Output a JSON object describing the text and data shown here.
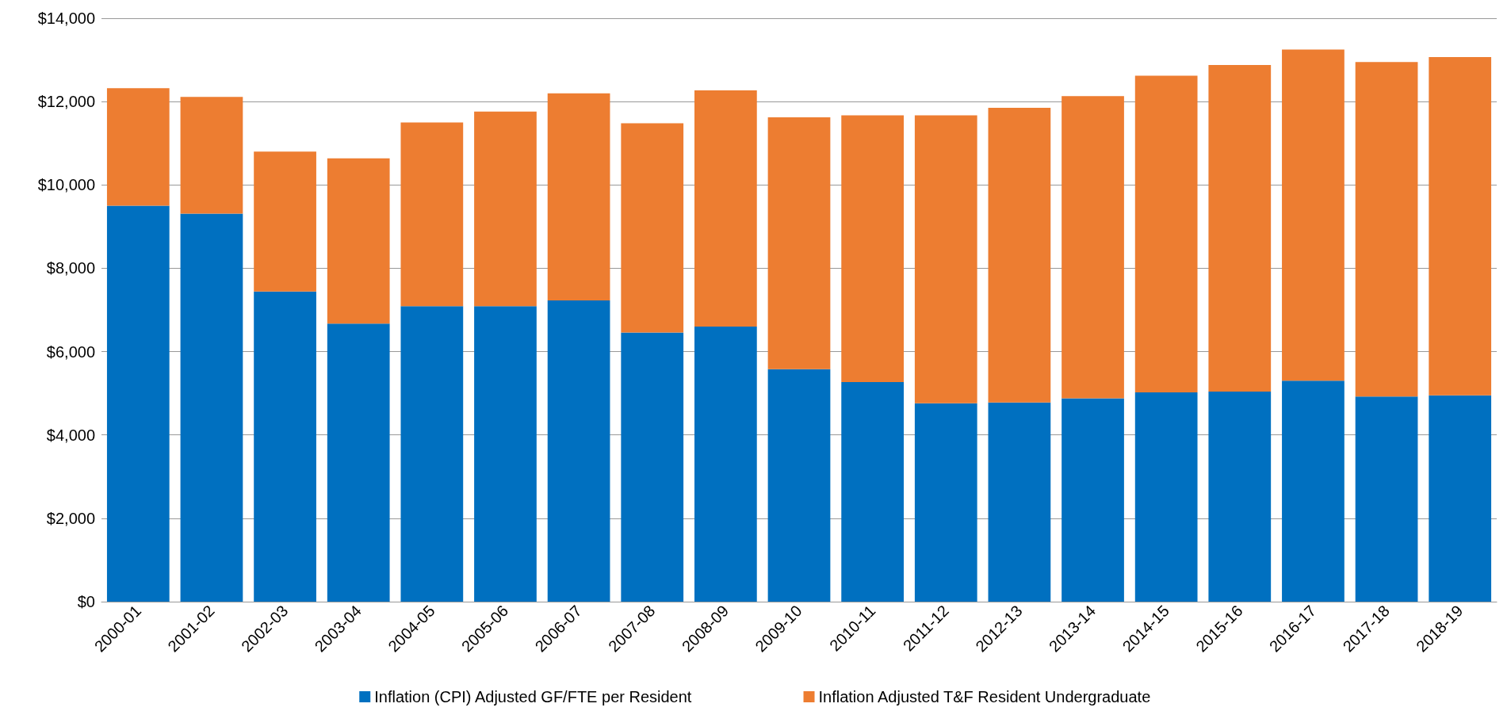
{
  "chart_data": {
    "type": "bar",
    "stacked": true,
    "categories": [
      "2000-01",
      "2001-02",
      "2002-03",
      "2003-04",
      "2004-05",
      "2005-06",
      "2006-07",
      "2007-08",
      "2008-09",
      "2009-10",
      "2010-11",
      "2011-12",
      "2012-13",
      "2013-14",
      "2014-15",
      "2015-16",
      "2016-17",
      "2017-18",
      "2018-19"
    ],
    "series": [
      {
        "name": "Inflation (CPI) Adjusted GF/FTE per Resident",
        "color": "#0070c0",
        "values": [
          9500,
          9310,
          7440,
          6670,
          7090,
          7090,
          7230,
          6460,
          6600,
          5580,
          5270,
          4760,
          4780,
          4880,
          5020,
          5040,
          5300,
          4920,
          4950
        ]
      },
      {
        "name": "Inflation Adjusted T&F Resident Undergraduate",
        "color": "#ed7d31",
        "values": [
          2820,
          2800,
          3360,
          3970,
          4410,
          4670,
          4970,
          5020,
          5670,
          6040,
          6400,
          6910,
          7070,
          7250,
          7600,
          7840,
          7950,
          8030,
          8120
        ]
      }
    ],
    "ylim": [
      0,
      14000
    ],
    "yticks": [
      {
        "value": 0,
        "label": "$0"
      },
      {
        "value": 2000,
        "label": "$2,000"
      },
      {
        "value": 4000,
        "label": "$4,000"
      },
      {
        "value": 6000,
        "label": "$6,000"
      },
      {
        "value": 8000,
        "label": "$8,000"
      },
      {
        "value": 10000,
        "label": "$10,000"
      },
      {
        "value": 12000,
        "label": "$12,000"
      },
      {
        "value": 14000,
        "label": "$14,000"
      }
    ],
    "grid": "y",
    "legend": "bottom"
  }
}
